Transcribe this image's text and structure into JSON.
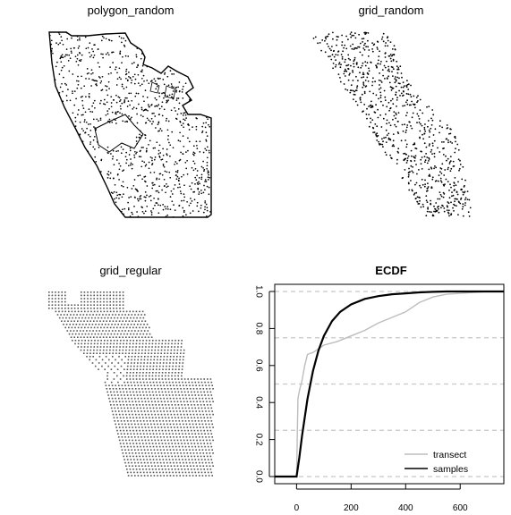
{
  "panels": {
    "polygon_random": {
      "title": "polygon_random"
    },
    "grid_random": {
      "title": "grid_random"
    },
    "grid_regular": {
      "title": "grid_regular"
    }
  },
  "chart_data": [
    {
      "type": "scatter",
      "title": "polygon_random",
      "description_kind": "spatial sample points within study-area polygon",
      "series": [
        {
          "name": "",
          "values": []
        }
      ]
    },
    {
      "type": "scatter",
      "title": "grid_random",
      "series": [
        {
          "name": "",
          "values": []
        }
      ]
    },
    {
      "type": "scatter",
      "title": "grid_regular",
      "series": [
        {
          "name": "",
          "values": []
        }
      ]
    },
    {
      "type": "line",
      "title": "ECDF",
      "xlabel": "",
      "ylabel": "",
      "xlim": [
        -80,
        760
      ],
      "ylim": [
        0,
        1
      ],
      "xticks": [
        "0",
        "200",
        "400",
        "600"
      ],
      "yticks": [
        "0.0",
        "0.2",
        "0.4",
        "0.6",
        "0.8",
        "1.0"
      ],
      "hlines": [
        0,
        0.25,
        0.5,
        0.75,
        1
      ],
      "legend_position": "bottom-right",
      "series": [
        {
          "name": "transect",
          "color": "#bdbdbd",
          "x": [
            -80,
            0,
            5,
            10,
            20,
            30,
            40,
            60,
            80,
            100,
            150,
            200,
            250,
            300,
            350,
            400,
            450,
            500,
            550,
            600,
            650,
            700,
            760
          ],
          "y": [
            0,
            0,
            0.42,
            0.46,
            0.52,
            0.6,
            0.66,
            0.67,
            0.69,
            0.71,
            0.73,
            0.76,
            0.79,
            0.83,
            0.86,
            0.89,
            0.94,
            0.97,
            0.985,
            0.99,
            0.995,
            1.0,
            1.0
          ]
        },
        {
          "name": "samples",
          "color": "#000000",
          "x": [
            -80,
            0,
            10,
            20,
            40,
            60,
            80,
            100,
            130,
            160,
            200,
            250,
            300,
            350,
            400,
            450,
            500,
            550,
            600,
            650,
            700,
            760
          ],
          "y": [
            0,
            0,
            0.1,
            0.22,
            0.42,
            0.57,
            0.68,
            0.76,
            0.84,
            0.89,
            0.93,
            0.96,
            0.975,
            0.985,
            0.99,
            0.995,
            0.998,
            1.0,
            1.0,
            1.0,
            1.0,
            1.0
          ]
        }
      ]
    }
  ]
}
